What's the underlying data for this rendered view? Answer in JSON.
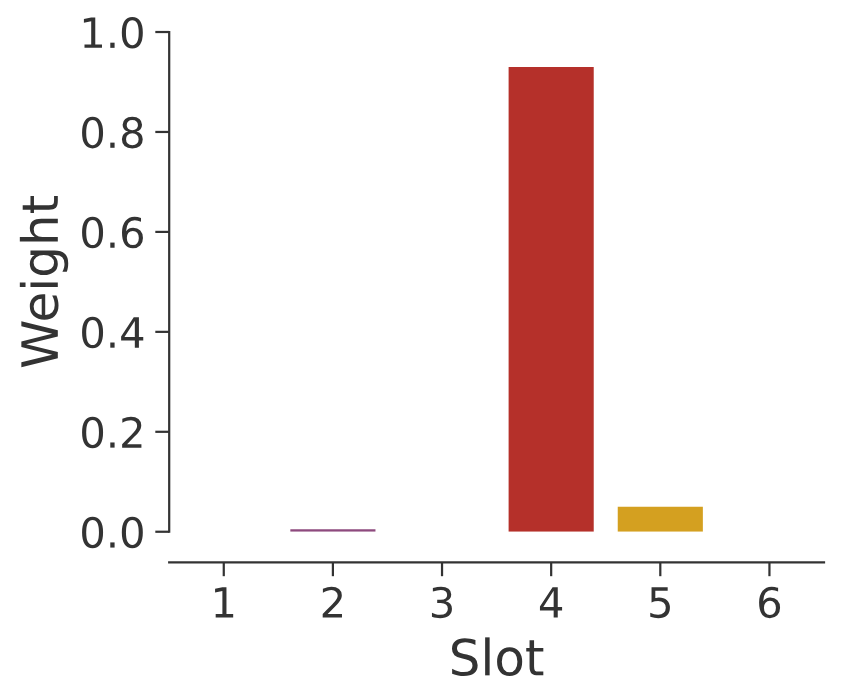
{
  "chart_data": {
    "type": "bar",
    "xlabel": "Slot",
    "ylabel": "Weight",
    "categories": [
      "1",
      "2",
      "3",
      "4",
      "5",
      "6"
    ],
    "values": [
      0,
      0.005,
      0,
      0.93,
      0.05,
      0
    ],
    "colors": [
      "#3b6fb6",
      "#8e4a7e",
      "#4a9a6a",
      "#b5302a",
      "#d4a020",
      "#6a6a6a"
    ],
    "ylim": [
      0,
      1.0
    ],
    "yticks": [
      {
        "value": 0,
        "label": "0.0"
      },
      0.2,
      0.4,
      0.6,
      0.8,
      {
        "value": 1,
        "label": "1.0"
      }
    ],
    "grid": false
  }
}
